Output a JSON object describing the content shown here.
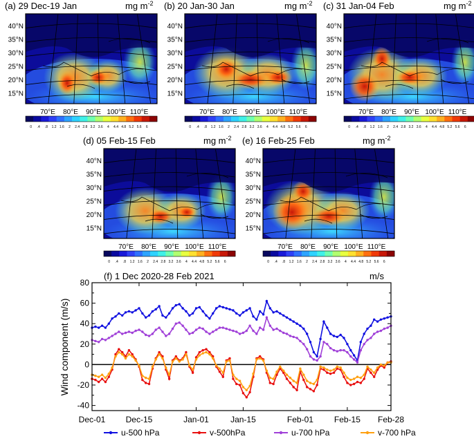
{
  "colorbar": {
    "ticks": [
      "0",
      ".4",
      ".8",
      "1.2",
      "1.6",
      "2",
      "2.4",
      "2.8",
      "3.2",
      "3.6",
      "4",
      "4.4",
      "4.8",
      "5.2",
      "5.6",
      "6"
    ],
    "colors": [
      "#08085e",
      "#0a0aa0",
      "#1a1ad8",
      "#2f40f5",
      "#2f70ff",
      "#2ea4ff",
      "#2ed2ff",
      "#40f0e8",
      "#70ffb0",
      "#b0ff70",
      "#e8ff40",
      "#ffe030",
      "#ffb020",
      "#ff7010",
      "#f03a08",
      "#c81808",
      "#8c0404"
    ]
  },
  "map_axes": {
    "lat_labels": [
      "40°N",
      "35°N",
      "30°N",
      "25°N",
      "20°N",
      "15°N"
    ],
    "lon_labels": [
      "70°E",
      "80°E",
      "90°E",
      "100°E",
      "110°E"
    ]
  },
  "maps": [
    {
      "panel_label": "(a) 29 Dec-19 Jan",
      "units": "mg m",
      "units_exp": "-2"
    },
    {
      "panel_label": "(b) 20 Jan-30 Jan",
      "units": "mg m",
      "units_exp": "-2"
    },
    {
      "panel_label": "(c) 31 Jan-04 Feb",
      "units": "mg m",
      "units_exp": "-2"
    },
    {
      "panel_label": "(d) 05 Feb-15 Feb",
      "units": "mg m",
      "units_exp": "-2"
    },
    {
      "panel_label": "(e) 16 Feb-25 Feb",
      "units": "mg m",
      "units_exp": "-2"
    }
  ],
  "chart_data": {
    "type": "line",
    "title": "(f) 1 Dec 2020-28 Feb 2021",
    "units": "m/s",
    "ylabel": "Wind component (m/s)",
    "ylim": [
      -45,
      80
    ],
    "yticks": [
      -40,
      -20,
      0,
      20,
      40,
      60,
      80
    ],
    "x_ticks": [
      {
        "day": 0,
        "label": "Dec-01"
      },
      {
        "day": 14,
        "label": "Dec-15"
      },
      {
        "day": 31,
        "label": "Jan-01"
      },
      {
        "day": 45,
        "label": "Jan-15"
      },
      {
        "day": 62,
        "label": "Feb-01"
      },
      {
        "day": 76,
        "label": "Feb-15"
      },
      {
        "day": 89,
        "label": "Feb-28"
      }
    ],
    "xlim": [
      0,
      89
    ],
    "series": [
      {
        "name": "u-500 hPa",
        "color": "#1010e0",
        "values": [
          36,
          37,
          36,
          38,
          36,
          40,
          45,
          47,
          50,
          48,
          51,
          52,
          51,
          53,
          55,
          50,
          46,
          48,
          52,
          54,
          57,
          48,
          46,
          50,
          55,
          58,
          59,
          55,
          52,
          48,
          50,
          55,
          56,
          52,
          48,
          45,
          50,
          55,
          57,
          56,
          55,
          54,
          53,
          50,
          48,
          51,
          53,
          55,
          47,
          44,
          52,
          49,
          62,
          55,
          51,
          52,
          50,
          48,
          46,
          44,
          42,
          40,
          38,
          35,
          30,
          22,
          12,
          8,
          25,
          42,
          36,
          30,
          28,
          27,
          29,
          26,
          20,
          14,
          9,
          4,
          22,
          30,
          35,
          38,
          44,
          42,
          44,
          45,
          46,
          47
        ]
      },
      {
        "name": "v-500hPa",
        "color": "#e81010",
        "values": [
          -14,
          -15,
          -17,
          -14,
          -17,
          -12,
          -5,
          10,
          15,
          12,
          8,
          14,
          10,
          5,
          -2,
          -15,
          -18,
          -19,
          -4,
          6,
          12,
          8,
          -5,
          -14,
          4,
          8,
          4,
          6,
          12,
          -2,
          -8,
          7,
          12,
          14,
          15,
          12,
          8,
          -2,
          -7,
          -12,
          4,
          6,
          -14,
          -19,
          -20,
          -28,
          -32,
          -27,
          -12,
          6,
          8,
          5,
          -8,
          -18,
          -19,
          -10,
          -4,
          -8,
          -14,
          -18,
          -22,
          -25,
          -7,
          -15,
          -22,
          -24,
          -26,
          -20,
          -4,
          -5,
          -8,
          -9,
          -8,
          -4,
          -5,
          -12,
          -18,
          -20,
          -19,
          -17,
          -18,
          -14,
          -4,
          -8,
          -12,
          -5,
          -1,
          -3,
          2,
          3
        ]
      },
      {
        "name": "u-700 hPa",
        "color": "#a040d8",
        "values": [
          24,
          23,
          22,
          25,
          24,
          26,
          28,
          30,
          32,
          30,
          31,
          32,
          31,
          33,
          34,
          32,
          29,
          28,
          30,
          34,
          36,
          32,
          28,
          30,
          35,
          40,
          41,
          38,
          34,
          30,
          31,
          34,
          36,
          35,
          32,
          30,
          32,
          34,
          36,
          36,
          35,
          34,
          33,
          32,
          30,
          31,
          33,
          38,
          33,
          30,
          36,
          34,
          46,
          38,
          34,
          35,
          33,
          31,
          30,
          28,
          27,
          26,
          23,
          20,
          15,
          8,
          5,
          4,
          8,
          22,
          20,
          16,
          14,
          13,
          14,
          14,
          12,
          8,
          5,
          2,
          14,
          20,
          24,
          26,
          30,
          32,
          33,
          35,
          36,
          38
        ]
      },
      {
        "name": "v-700 hPa",
        "color": "#ffa010",
        "values": [
          -10,
          -11,
          -12,
          -10,
          -13,
          -9,
          -3,
          8,
          12,
          10,
          6,
          10,
          8,
          4,
          -1,
          -11,
          -13,
          -14,
          -2,
          5,
          10,
          6,
          -3,
          -10,
          3,
          6,
          3,
          5,
          10,
          -1,
          -5,
          5,
          9,
          11,
          12,
          10,
          6,
          -1,
          -4,
          -8,
          3,
          4,
          -10,
          -14,
          -16,
          -22,
          -25,
          -21,
          -9,
          5,
          6,
          4,
          -6,
          -13,
          -14,
          -7,
          -2,
          -6,
          -10,
          -13,
          -16,
          -18,
          -4,
          -10,
          -16,
          -18,
          -19,
          -15,
          -2,
          -3,
          -5,
          -6,
          -5,
          -2,
          -3,
          -8,
          -13,
          -15,
          -14,
          -12,
          -13,
          -10,
          -2,
          -5,
          -8,
          -3,
          0,
          -1,
          2,
          2
        ]
      }
    ]
  }
}
